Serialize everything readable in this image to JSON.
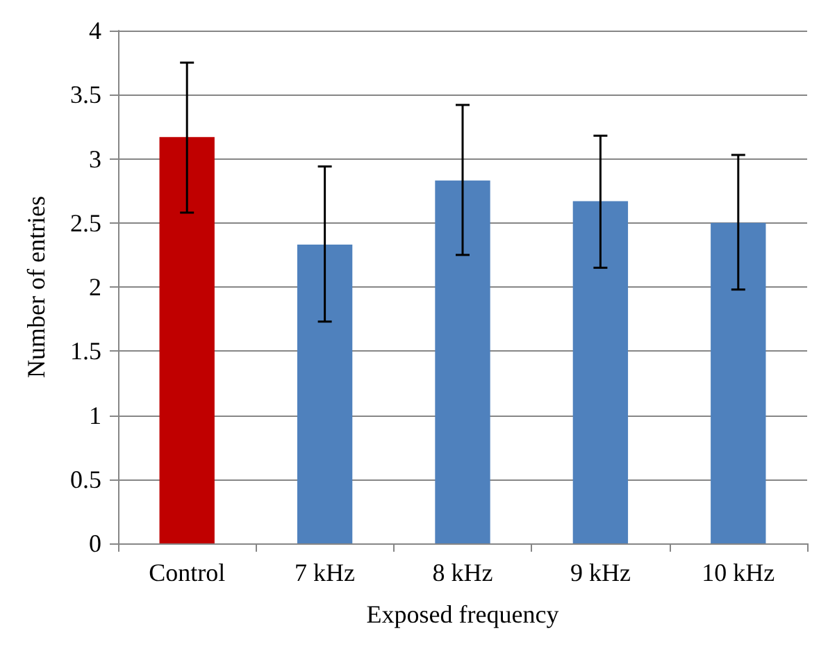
{
  "chart_data": {
    "type": "bar",
    "xlabel": "Exposed frequency",
    "ylabel": "Number of entries",
    "categories": [
      "Control",
      "7 kHz",
      "8 kHz",
      "9 kHz",
      "10 kHz"
    ],
    "values": [
      3.17,
      2.33,
      2.83,
      2.67,
      2.5
    ],
    "colors": [
      "#c00000",
      "#4f81bd",
      "#4f81bd",
      "#4f81bd",
      "#4f81bd"
    ],
    "errors": [
      [
        2.58,
        3.75
      ],
      [
        1.73,
        2.94
      ],
      [
        2.25,
        3.42
      ],
      [
        2.15,
        3.18
      ],
      [
        1.98,
        3.03
      ]
    ],
    "ylim": [
      0,
      4
    ],
    "yticks": [
      0,
      0.5,
      1,
      1.5,
      2,
      2.5,
      3,
      3.5,
      4
    ],
    "grid": "y"
  }
}
